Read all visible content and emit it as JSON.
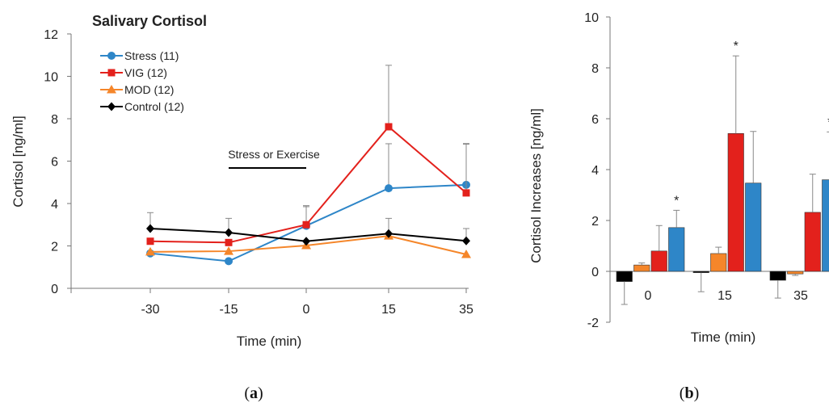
{
  "chart_data": [
    {
      "type": "line",
      "title": "Salivary Cortisol",
      "xlabel": "Time (min)",
      "ylabel": "Cortisol [ng/ml]",
      "x": [
        -30,
        -15,
        0,
        15,
        35
      ],
      "x_tick_labels": [
        "-30",
        "-15",
        "0",
        "15",
        "35"
      ],
      "ylim": [
        0,
        12
      ],
      "y_ticks": [
        0,
        2,
        4,
        6,
        8,
        10,
        12
      ],
      "legend_position": "top-left",
      "annotation": "Stress or Exercise",
      "annotation_range": [
        -15,
        0
      ],
      "caption": "a",
      "series": [
        {
          "name": "Stress (11)",
          "color": "#2e86c8",
          "marker": "circle",
          "values": [
            1.65,
            1.28,
            2.95,
            4.72,
            4.88
          ],
          "error_upper": [
            null,
            null,
            0.9,
            2.1,
            1.95
          ]
        },
        {
          "name": "VIG (12)",
          "color": "#e3211c",
          "marker": "square",
          "values": [
            2.22,
            2.16,
            3.0,
            7.62,
            4.5
          ],
          "error_upper": [
            null,
            null,
            0.9,
            2.9,
            2.3
          ]
        },
        {
          "name": "MOD (12)",
          "color": "#f5862a",
          "marker": "triangle",
          "values": [
            1.72,
            1.75,
            2.02,
            2.47,
            1.6
          ],
          "error_upper": [
            null,
            null,
            null,
            null,
            null
          ]
        },
        {
          "name": "Control (12)",
          "color": "#000000",
          "marker": "diamond",
          "values": [
            2.82,
            2.63,
            2.22,
            2.58,
            2.24
          ],
          "error_upper": [
            0.75,
            0.67,
            null,
            0.72,
            0.58
          ]
        }
      ]
    },
    {
      "type": "bar",
      "xlabel": "Time (min)",
      "ylabel": "Cortisol Increases [ng/ml]",
      "categories": [
        "0",
        "15",
        "35"
      ],
      "ylim": [
        -2,
        10
      ],
      "y_ticks": [
        -2,
        0,
        2,
        4,
        6,
        8,
        10
      ],
      "significance_marker": "*",
      "caption": "b",
      "series": [
        {
          "color": "#000000",
          "values": [
            -0.4,
            -0.05,
            -0.35
          ],
          "error": [
            0.9,
            0.75,
            0.7
          ]
        },
        {
          "color": "#f5862a",
          "values": [
            0.25,
            0.7,
            -0.1
          ],
          "error": [
            0.08,
            0.25,
            0.06
          ]
        },
        {
          "color": "#e3211c",
          "values": [
            0.8,
            5.42,
            2.32
          ],
          "error": [
            1.0,
            3.05,
            1.5
          ]
        },
        {
          "color": "#2e86c8",
          "values": [
            1.72,
            3.47,
            3.6
          ],
          "error": [
            0.68,
            2.03,
            1.88
          ]
        }
      ],
      "significant": [
        [
          false,
          false,
          false,
          true
        ],
        [
          false,
          false,
          true,
          false
        ],
        [
          false,
          false,
          false,
          true
        ]
      ]
    }
  ]
}
